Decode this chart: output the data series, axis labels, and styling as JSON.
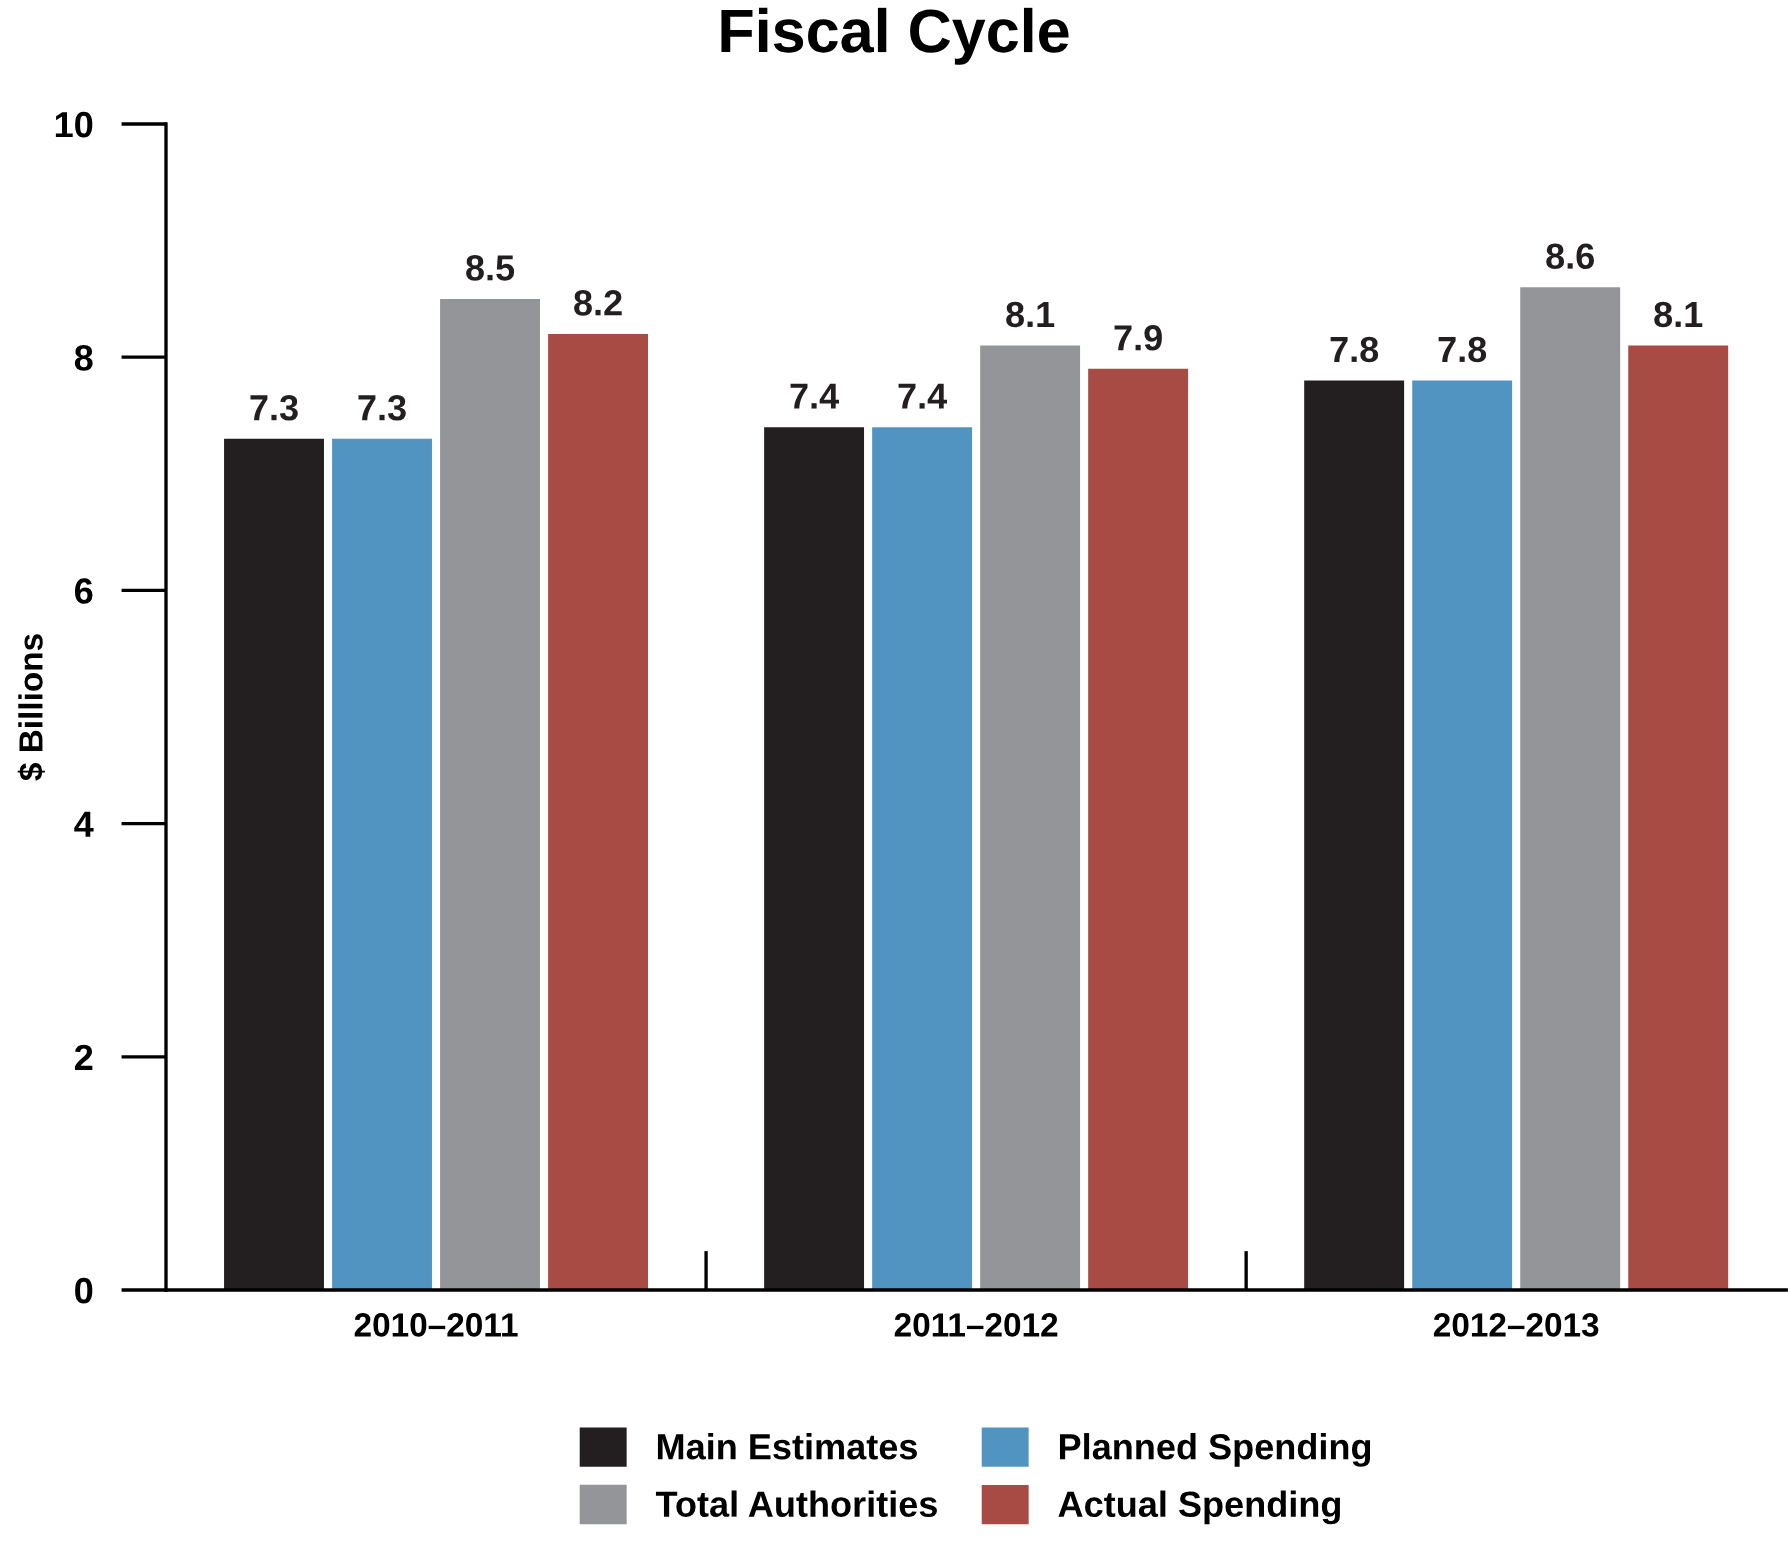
{
  "chart_data": {
    "type": "bar",
    "title": "Fiscal Cycle",
    "ylabel": "$ Billions",
    "categories": [
      "2010–2011",
      "2011–2012",
      "2012–2013"
    ],
    "series": [
      {
        "name": "Main Estimates",
        "color": "#231f20",
        "values": [
          7.3,
          7.4,
          7.8
        ]
      },
      {
        "name": "Planned Spending",
        "color": "#5294c1",
        "values": [
          7.3,
          7.4,
          7.8
        ]
      },
      {
        "name": "Total Authorities",
        "color": "#939598",
        "values": [
          8.5,
          8.1,
          8.6
        ]
      },
      {
        "name": "Actual Spending",
        "color": "#a84b44",
        "values": [
          8.2,
          7.9,
          8.1
        ]
      }
    ],
    "ylim": [
      0,
      10
    ],
    "yticks": [
      0,
      2,
      4,
      6,
      8,
      10
    ],
    "data_labels": true,
    "legend": "bottom",
    "grid": false
  }
}
